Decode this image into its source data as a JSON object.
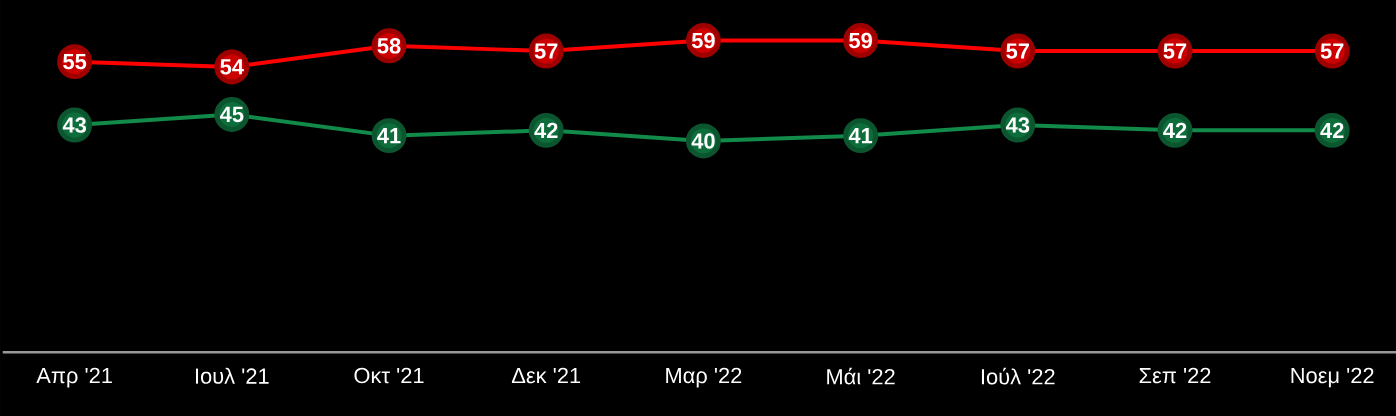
{
  "chart_data": {
    "type": "line",
    "categories": [
      "Απρ '21",
      "Ιουλ '21",
      "Οκτ '21",
      "Δεκ '21",
      "Μαρ '22",
      "Μάι '22",
      "Ιούλ '22",
      "Σεπ '22",
      "Νοεμ '22"
    ],
    "series": [
      {
        "color": "#ff0000",
        "values": [
          55,
          54,
          58,
          57,
          59,
          59,
          57,
          57,
          57
        ]
      },
      {
        "color": "#128a4a",
        "values": [
          43,
          45,
          41,
          42,
          40,
          41,
          43,
          42,
          42
        ]
      }
    ],
    "marker": "circle",
    "data_labels": true,
    "tick_labels": "x",
    "line_style": "solid"
  }
}
